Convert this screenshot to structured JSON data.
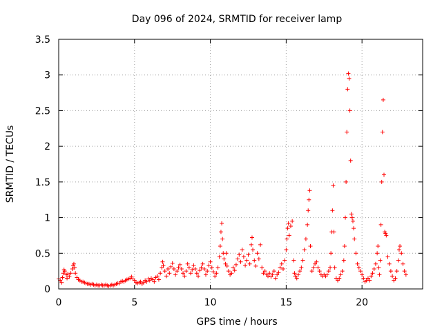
{
  "chart_data": {
    "type": "scatter",
    "title": "Day 096 of 2024, SRMTID for receiver lamp",
    "xlabel": "GPS time / hours",
    "ylabel": "SRMTID / TECUs",
    "xlim": [
      0,
      24
    ],
    "ylim": [
      0,
      3.5
    ],
    "xticks": [
      0,
      5,
      10,
      15,
      20
    ],
    "xtick_labels": [
      "0",
      "5",
      "10",
      "15",
      "20"
    ],
    "yticks": [
      0,
      0.5,
      1,
      1.5,
      2,
      2.5,
      3,
      3.5
    ],
    "ytick_labels": [
      "0",
      "0.5",
      "1",
      "1.5",
      "2",
      "2.5",
      "3",
      "3.5"
    ],
    "grid": true,
    "marker": "+",
    "series": [
      {
        "name": "SRMTID",
        "color": "#ff0000",
        "points": [
          [
            0.0,
            0.14
          ],
          [
            0.1,
            0.12
          ],
          [
            0.2,
            0.09
          ],
          [
            0.25,
            0.16
          ],
          [
            0.3,
            0.22
          ],
          [
            0.35,
            0.27
          ],
          [
            0.4,
            0.25
          ],
          [
            0.5,
            0.2
          ],
          [
            0.55,
            0.15
          ],
          [
            0.6,
            0.21
          ],
          [
            0.7,
            0.17
          ],
          [
            0.8,
            0.22
          ],
          [
            0.9,
            0.28
          ],
          [
            0.95,
            0.33
          ],
          [
            1.0,
            0.35
          ],
          [
            1.05,
            0.3
          ],
          [
            1.1,
            0.22
          ],
          [
            1.2,
            0.16
          ],
          [
            1.3,
            0.13
          ],
          [
            1.4,
            0.12
          ],
          [
            1.5,
            0.1
          ],
          [
            1.6,
            0.1
          ],
          [
            1.7,
            0.09
          ],
          [
            1.8,
            0.08
          ],
          [
            1.9,
            0.07
          ],
          [
            2.0,
            0.07
          ],
          [
            2.1,
            0.06
          ],
          [
            2.2,
            0.07
          ],
          [
            2.3,
            0.06
          ],
          [
            2.4,
            0.05
          ],
          [
            2.5,
            0.06
          ],
          [
            2.6,
            0.05
          ],
          [
            2.7,
            0.05
          ],
          [
            2.8,
            0.06
          ],
          [
            2.9,
            0.05
          ],
          [
            3.0,
            0.05
          ],
          [
            3.1,
            0.06
          ],
          [
            3.2,
            0.05
          ],
          [
            3.3,
            0.04
          ],
          [
            3.4,
            0.05
          ],
          [
            3.5,
            0.06
          ],
          [
            3.6,
            0.05
          ],
          [
            3.7,
            0.06
          ],
          [
            3.8,
            0.07
          ],
          [
            3.9,
            0.08
          ],
          [
            4.0,
            0.08
          ],
          [
            4.1,
            0.1
          ],
          [
            4.2,
            0.11
          ],
          [
            4.3,
            0.1
          ],
          [
            4.4,
            0.12
          ],
          [
            4.5,
            0.13
          ],
          [
            4.6,
            0.14
          ],
          [
            4.7,
            0.15
          ],
          [
            4.8,
            0.17
          ],
          [
            4.9,
            0.14
          ],
          [
            5.0,
            0.12
          ],
          [
            5.1,
            0.09
          ],
          [
            5.2,
            0.08
          ],
          [
            5.3,
            0.09
          ],
          [
            5.4,
            0.1
          ],
          [
            5.5,
            0.07
          ],
          [
            5.6,
            0.09
          ],
          [
            5.7,
            0.12
          ],
          [
            5.8,
            0.1
          ],
          [
            5.9,
            0.14
          ],
          [
            6.0,
            0.12
          ],
          [
            6.1,
            0.15
          ],
          [
            6.2,
            0.13
          ],
          [
            6.3,
            0.1
          ],
          [
            6.4,
            0.16
          ],
          [
            6.5,
            0.18
          ],
          [
            6.6,
            0.13
          ],
          [
            6.7,
            0.22
          ],
          [
            6.8,
            0.3
          ],
          [
            6.85,
            0.38
          ],
          [
            6.9,
            0.33
          ],
          [
            7.0,
            0.25
          ],
          [
            7.1,
            0.18
          ],
          [
            7.2,
            0.28
          ],
          [
            7.3,
            0.22
          ],
          [
            7.4,
            0.31
          ],
          [
            7.5,
            0.36
          ],
          [
            7.6,
            0.28
          ],
          [
            7.7,
            0.2
          ],
          [
            7.8,
            0.25
          ],
          [
            7.9,
            0.3
          ],
          [
            8.0,
            0.34
          ],
          [
            8.1,
            0.28
          ],
          [
            8.2,
            0.22
          ],
          [
            8.3,
            0.18
          ],
          [
            8.4,
            0.25
          ],
          [
            8.5,
            0.35
          ],
          [
            8.6,
            0.3
          ],
          [
            8.7,
            0.22
          ],
          [
            8.8,
            0.27
          ],
          [
            8.9,
            0.33
          ],
          [
            9.0,
            0.28
          ],
          [
            9.1,
            0.22
          ],
          [
            9.2,
            0.18
          ],
          [
            9.3,
            0.26
          ],
          [
            9.4,
            0.3
          ],
          [
            9.5,
            0.35
          ],
          [
            9.6,
            0.28
          ],
          [
            9.7,
            0.2
          ],
          [
            9.8,
            0.25
          ],
          [
            9.9,
            0.33
          ],
          [
            10.0,
            0.38
          ],
          [
            10.1,
            0.3
          ],
          [
            10.2,
            0.24
          ],
          [
            10.3,
            0.18
          ],
          [
            10.4,
            0.22
          ],
          [
            10.5,
            0.3
          ],
          [
            10.6,
            0.45
          ],
          [
            10.65,
            0.6
          ],
          [
            10.7,
            0.8
          ],
          [
            10.75,
            0.92
          ],
          [
            10.8,
            0.7
          ],
          [
            10.85,
            0.5
          ],
          [
            10.9,
            0.42
          ],
          [
            11.0,
            0.35
          ],
          [
            11.05,
            0.5
          ],
          [
            11.1,
            0.32
          ],
          [
            11.2,
            0.25
          ],
          [
            11.3,
            0.2
          ],
          [
            11.4,
            0.22
          ],
          [
            11.5,
            0.3
          ],
          [
            11.6,
            0.26
          ],
          [
            11.7,
            0.34
          ],
          [
            11.8,
            0.42
          ],
          [
            11.9,
            0.48
          ],
          [
            12.0,
            0.38
          ],
          [
            12.1,
            0.55
          ],
          [
            12.2,
            0.45
          ],
          [
            12.3,
            0.33
          ],
          [
            12.4,
            0.4
          ],
          [
            12.5,
            0.48
          ],
          [
            12.6,
            0.35
          ],
          [
            12.7,
            0.62
          ],
          [
            12.75,
            0.72
          ],
          [
            12.8,
            0.55
          ],
          [
            12.9,
            0.4
          ],
          [
            13.0,
            0.32
          ],
          [
            13.1,
            0.5
          ],
          [
            13.2,
            0.42
          ],
          [
            13.3,
            0.62
          ],
          [
            13.4,
            0.3
          ],
          [
            13.5,
            0.22
          ],
          [
            13.6,
            0.25
          ],
          [
            13.7,
            0.2
          ],
          [
            13.8,
            0.18
          ],
          [
            13.9,
            0.22
          ],
          [
            14.0,
            0.17
          ],
          [
            14.1,
            0.2
          ],
          [
            14.2,
            0.25
          ],
          [
            14.3,
            0.15
          ],
          [
            14.4,
            0.2
          ],
          [
            14.5,
            0.23
          ],
          [
            14.6,
            0.3
          ],
          [
            14.7,
            0.35
          ],
          [
            14.8,
            0.28
          ],
          [
            14.9,
            0.4
          ],
          [
            15.0,
            0.55
          ],
          [
            15.05,
            0.7
          ],
          [
            15.1,
            0.85
          ],
          [
            15.15,
            0.92
          ],
          [
            15.2,
            0.75
          ],
          [
            15.3,
            0.88
          ],
          [
            15.4,
            0.95
          ],
          [
            15.5,
            0.4
          ],
          [
            15.55,
            0.22
          ],
          [
            15.6,
            0.18
          ],
          [
            15.7,
            0.15
          ],
          [
            15.8,
            0.2
          ],
          [
            15.9,
            0.25
          ],
          [
            16.0,
            0.3
          ],
          [
            16.1,
            0.4
          ],
          [
            16.2,
            0.55
          ],
          [
            16.3,
            0.7
          ],
          [
            16.4,
            0.9
          ],
          [
            16.45,
            1.1
          ],
          [
            16.5,
            1.25
          ],
          [
            16.55,
            1.38
          ],
          [
            16.6,
            0.6
          ],
          [
            16.7,
            0.25
          ],
          [
            16.8,
            0.3
          ],
          [
            16.9,
            0.35
          ],
          [
            17.0,
            0.38
          ],
          [
            17.1,
            0.3
          ],
          [
            17.2,
            0.25
          ],
          [
            17.3,
            0.2
          ],
          [
            17.4,
            0.18
          ],
          [
            17.5,
            0.2
          ],
          [
            17.6,
            0.18
          ],
          [
            17.7,
            0.2
          ],
          [
            17.8,
            0.25
          ],
          [
            17.9,
            0.3
          ],
          [
            17.95,
            0.5
          ],
          [
            18.0,
            0.8
          ],
          [
            18.05,
            1.1
          ],
          [
            18.1,
            1.45
          ],
          [
            18.15,
            0.8
          ],
          [
            18.2,
            0.3
          ],
          [
            18.3,
            0.15
          ],
          [
            18.4,
            0.12
          ],
          [
            18.5,
            0.15
          ],
          [
            18.6,
            0.2
          ],
          [
            18.7,
            0.25
          ],
          [
            18.8,
            0.4
          ],
          [
            18.85,
            0.6
          ],
          [
            18.9,
            1.0
          ],
          [
            18.95,
            1.5
          ],
          [
            19.0,
            2.2
          ],
          [
            19.05,
            2.8
          ],
          [
            19.1,
            3.02
          ],
          [
            19.15,
            2.95
          ],
          [
            19.2,
            2.5
          ],
          [
            19.25,
            1.8
          ],
          [
            19.3,
            1.05
          ],
          [
            19.35,
            1.0
          ],
          [
            19.4,
            0.95
          ],
          [
            19.45,
            0.85
          ],
          [
            19.5,
            0.7
          ],
          [
            19.6,
            0.5
          ],
          [
            19.7,
            0.35
          ],
          [
            19.8,
            0.3
          ],
          [
            19.9,
            0.25
          ],
          [
            20.0,
            0.2
          ],
          [
            20.1,
            0.15
          ],
          [
            20.2,
            0.1
          ],
          [
            20.3,
            0.12
          ],
          [
            20.4,
            0.15
          ],
          [
            20.5,
            0.12
          ],
          [
            20.6,
            0.18
          ],
          [
            20.7,
            0.22
          ],
          [
            20.8,
            0.28
          ],
          [
            20.9,
            0.35
          ],
          [
            21.0,
            0.5
          ],
          [
            21.05,
            0.6
          ],
          [
            21.1,
            0.3
          ],
          [
            21.15,
            0.2
          ],
          [
            21.2,
            0.4
          ],
          [
            21.25,
            0.9
          ],
          [
            21.3,
            1.5
          ],
          [
            21.35,
            2.2
          ],
          [
            21.4,
            2.65
          ],
          [
            21.45,
            1.6
          ],
          [
            21.5,
            0.8
          ],
          [
            21.55,
            0.78
          ],
          [
            21.6,
            0.75
          ],
          [
            21.7,
            0.45
          ],
          [
            21.8,
            0.35
          ],
          [
            21.9,
            0.25
          ],
          [
            22.0,
            0.18
          ],
          [
            22.1,
            0.12
          ],
          [
            22.2,
            0.15
          ],
          [
            22.3,
            0.25
          ],
          [
            22.4,
            0.4
          ],
          [
            22.45,
            0.55
          ],
          [
            22.5,
            0.6
          ],
          [
            22.6,
            0.5
          ],
          [
            22.7,
            0.35
          ],
          [
            22.8,
            0.25
          ],
          [
            22.9,
            0.2
          ]
        ]
      }
    ]
  }
}
